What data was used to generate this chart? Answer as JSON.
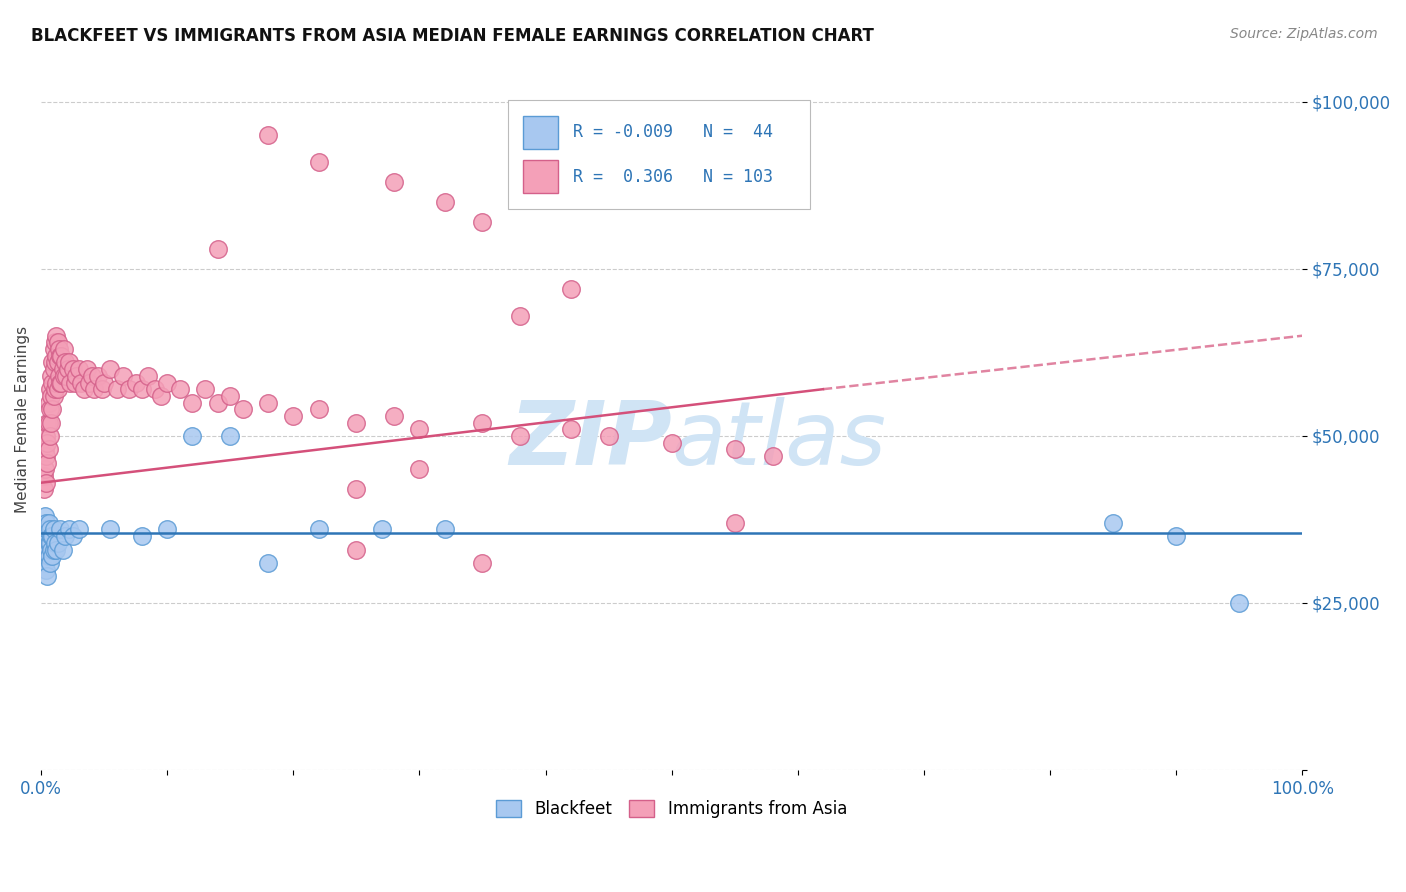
{
  "title": "BLACKFEET VS IMMIGRANTS FROM ASIA MEDIAN FEMALE EARNINGS CORRELATION CHART",
  "source": "Source: ZipAtlas.com",
  "ylabel": "Median Female Earnings",
  "yticks": [
    0,
    25000,
    50000,
    75000,
    100000
  ],
  "ytick_labels": [
    "",
    "$25,000",
    "$50,000",
    "$75,000",
    "$100,000"
  ],
  "xlim": [
    0.0,
    1.0
  ],
  "ylim": [
    0,
    105000
  ],
  "blackfeet_color": "#a8c8f0",
  "immigrants_color": "#f4a0b8",
  "blackfeet_edge": "#5b9bd5",
  "immigrants_edge": "#d4608a",
  "trend_blue": "#2e75b6",
  "trend_pink": "#d4507a",
  "watermark_color": "#d0e4f5",
  "legend_r_blackfeet": "-0.009",
  "legend_n_blackfeet": "44",
  "legend_r_immigrants": "0.306",
  "legend_n_immigrants": "103",
  "blackfeet_x": [
    0.002,
    0.002,
    0.003,
    0.003,
    0.003,
    0.004,
    0.004,
    0.004,
    0.005,
    0.005,
    0.005,
    0.006,
    0.006,
    0.006,
    0.007,
    0.007,
    0.007,
    0.008,
    0.008,
    0.009,
    0.009,
    0.01,
    0.01,
    0.011,
    0.012,
    0.013,
    0.015,
    0.017,
    0.019,
    0.022,
    0.025,
    0.03,
    0.055,
    0.08,
    0.1,
    0.12,
    0.15,
    0.18,
    0.22,
    0.27,
    0.32,
    0.85,
    0.9,
    0.95
  ],
  "blackfeet_y": [
    36000,
    33000,
    38000,
    35000,
    31000,
    37000,
    34000,
    30000,
    36000,
    33000,
    29000,
    37000,
    34000,
    32000,
    36000,
    34000,
    31000,
    35000,
    33000,
    35000,
    32000,
    36000,
    33000,
    34000,
    33000,
    34000,
    36000,
    33000,
    35000,
    36000,
    35000,
    36000,
    36000,
    35000,
    36000,
    50000,
    50000,
    31000,
    36000,
    36000,
    36000,
    37000,
    35000,
    25000
  ],
  "immigrants_x": [
    0.002,
    0.002,
    0.003,
    0.003,
    0.004,
    0.004,
    0.004,
    0.005,
    0.005,
    0.005,
    0.006,
    0.006,
    0.006,
    0.007,
    0.007,
    0.007,
    0.008,
    0.008,
    0.008,
    0.009,
    0.009,
    0.009,
    0.01,
    0.01,
    0.01,
    0.011,
    0.011,
    0.011,
    0.012,
    0.012,
    0.012,
    0.013,
    0.013,
    0.013,
    0.014,
    0.014,
    0.015,
    0.015,
    0.016,
    0.016,
    0.017,
    0.018,
    0.018,
    0.019,
    0.02,
    0.021,
    0.022,
    0.023,
    0.025,
    0.027,
    0.028,
    0.03,
    0.032,
    0.034,
    0.036,
    0.038,
    0.04,
    0.042,
    0.045,
    0.048,
    0.05,
    0.055,
    0.06,
    0.065,
    0.07,
    0.075,
    0.08,
    0.085,
    0.09,
    0.095,
    0.1,
    0.11,
    0.12,
    0.13,
    0.14,
    0.15,
    0.16,
    0.18,
    0.2,
    0.22,
    0.25,
    0.28,
    0.3,
    0.35,
    0.38,
    0.42,
    0.45,
    0.5,
    0.55,
    0.58,
    0.28,
    0.32,
    0.35,
    0.14,
    0.18,
    0.22,
    0.38,
    0.42,
    0.3,
    0.25,
    0.55,
    0.25,
    0.35
  ],
  "immigrants_y": [
    44000,
    42000,
    48000,
    45000,
    50000,
    47000,
    43000,
    52000,
    49000,
    46000,
    55000,
    52000,
    48000,
    57000,
    54000,
    50000,
    59000,
    56000,
    52000,
    61000,
    58000,
    54000,
    63000,
    60000,
    56000,
    64000,
    61000,
    57000,
    65000,
    62000,
    58000,
    64000,
    61000,
    57000,
    63000,
    59000,
    62000,
    58000,
    62000,
    58000,
    60000,
    63000,
    59000,
    61000,
    59000,
    60000,
    61000,
    58000,
    60000,
    58000,
    59000,
    60000,
    58000,
    57000,
    60000,
    58000,
    59000,
    57000,
    59000,
    57000,
    58000,
    60000,
    57000,
    59000,
    57000,
    58000,
    57000,
    59000,
    57000,
    56000,
    58000,
    57000,
    55000,
    57000,
    55000,
    56000,
    54000,
    55000,
    53000,
    54000,
    52000,
    53000,
    51000,
    52000,
    50000,
    51000,
    50000,
    49000,
    48000,
    47000,
    88000,
    85000,
    82000,
    78000,
    95000,
    91000,
    68000,
    72000,
    45000,
    42000,
    37000,
    33000,
    31000
  ],
  "trend_pink_x0": 0.0,
  "trend_pink_y0": 43000,
  "trend_pink_x1": 0.62,
  "trend_pink_y1": 57000,
  "trend_pink_dash_x0": 0.62,
  "trend_pink_dash_y0": 57000,
  "trend_pink_dash_x1": 1.0,
  "trend_pink_dash_y1": 65000,
  "trend_blue_x0": 0.0,
  "trend_blue_y0": 35500,
  "trend_blue_x1": 1.0,
  "trend_blue_y1": 35500
}
